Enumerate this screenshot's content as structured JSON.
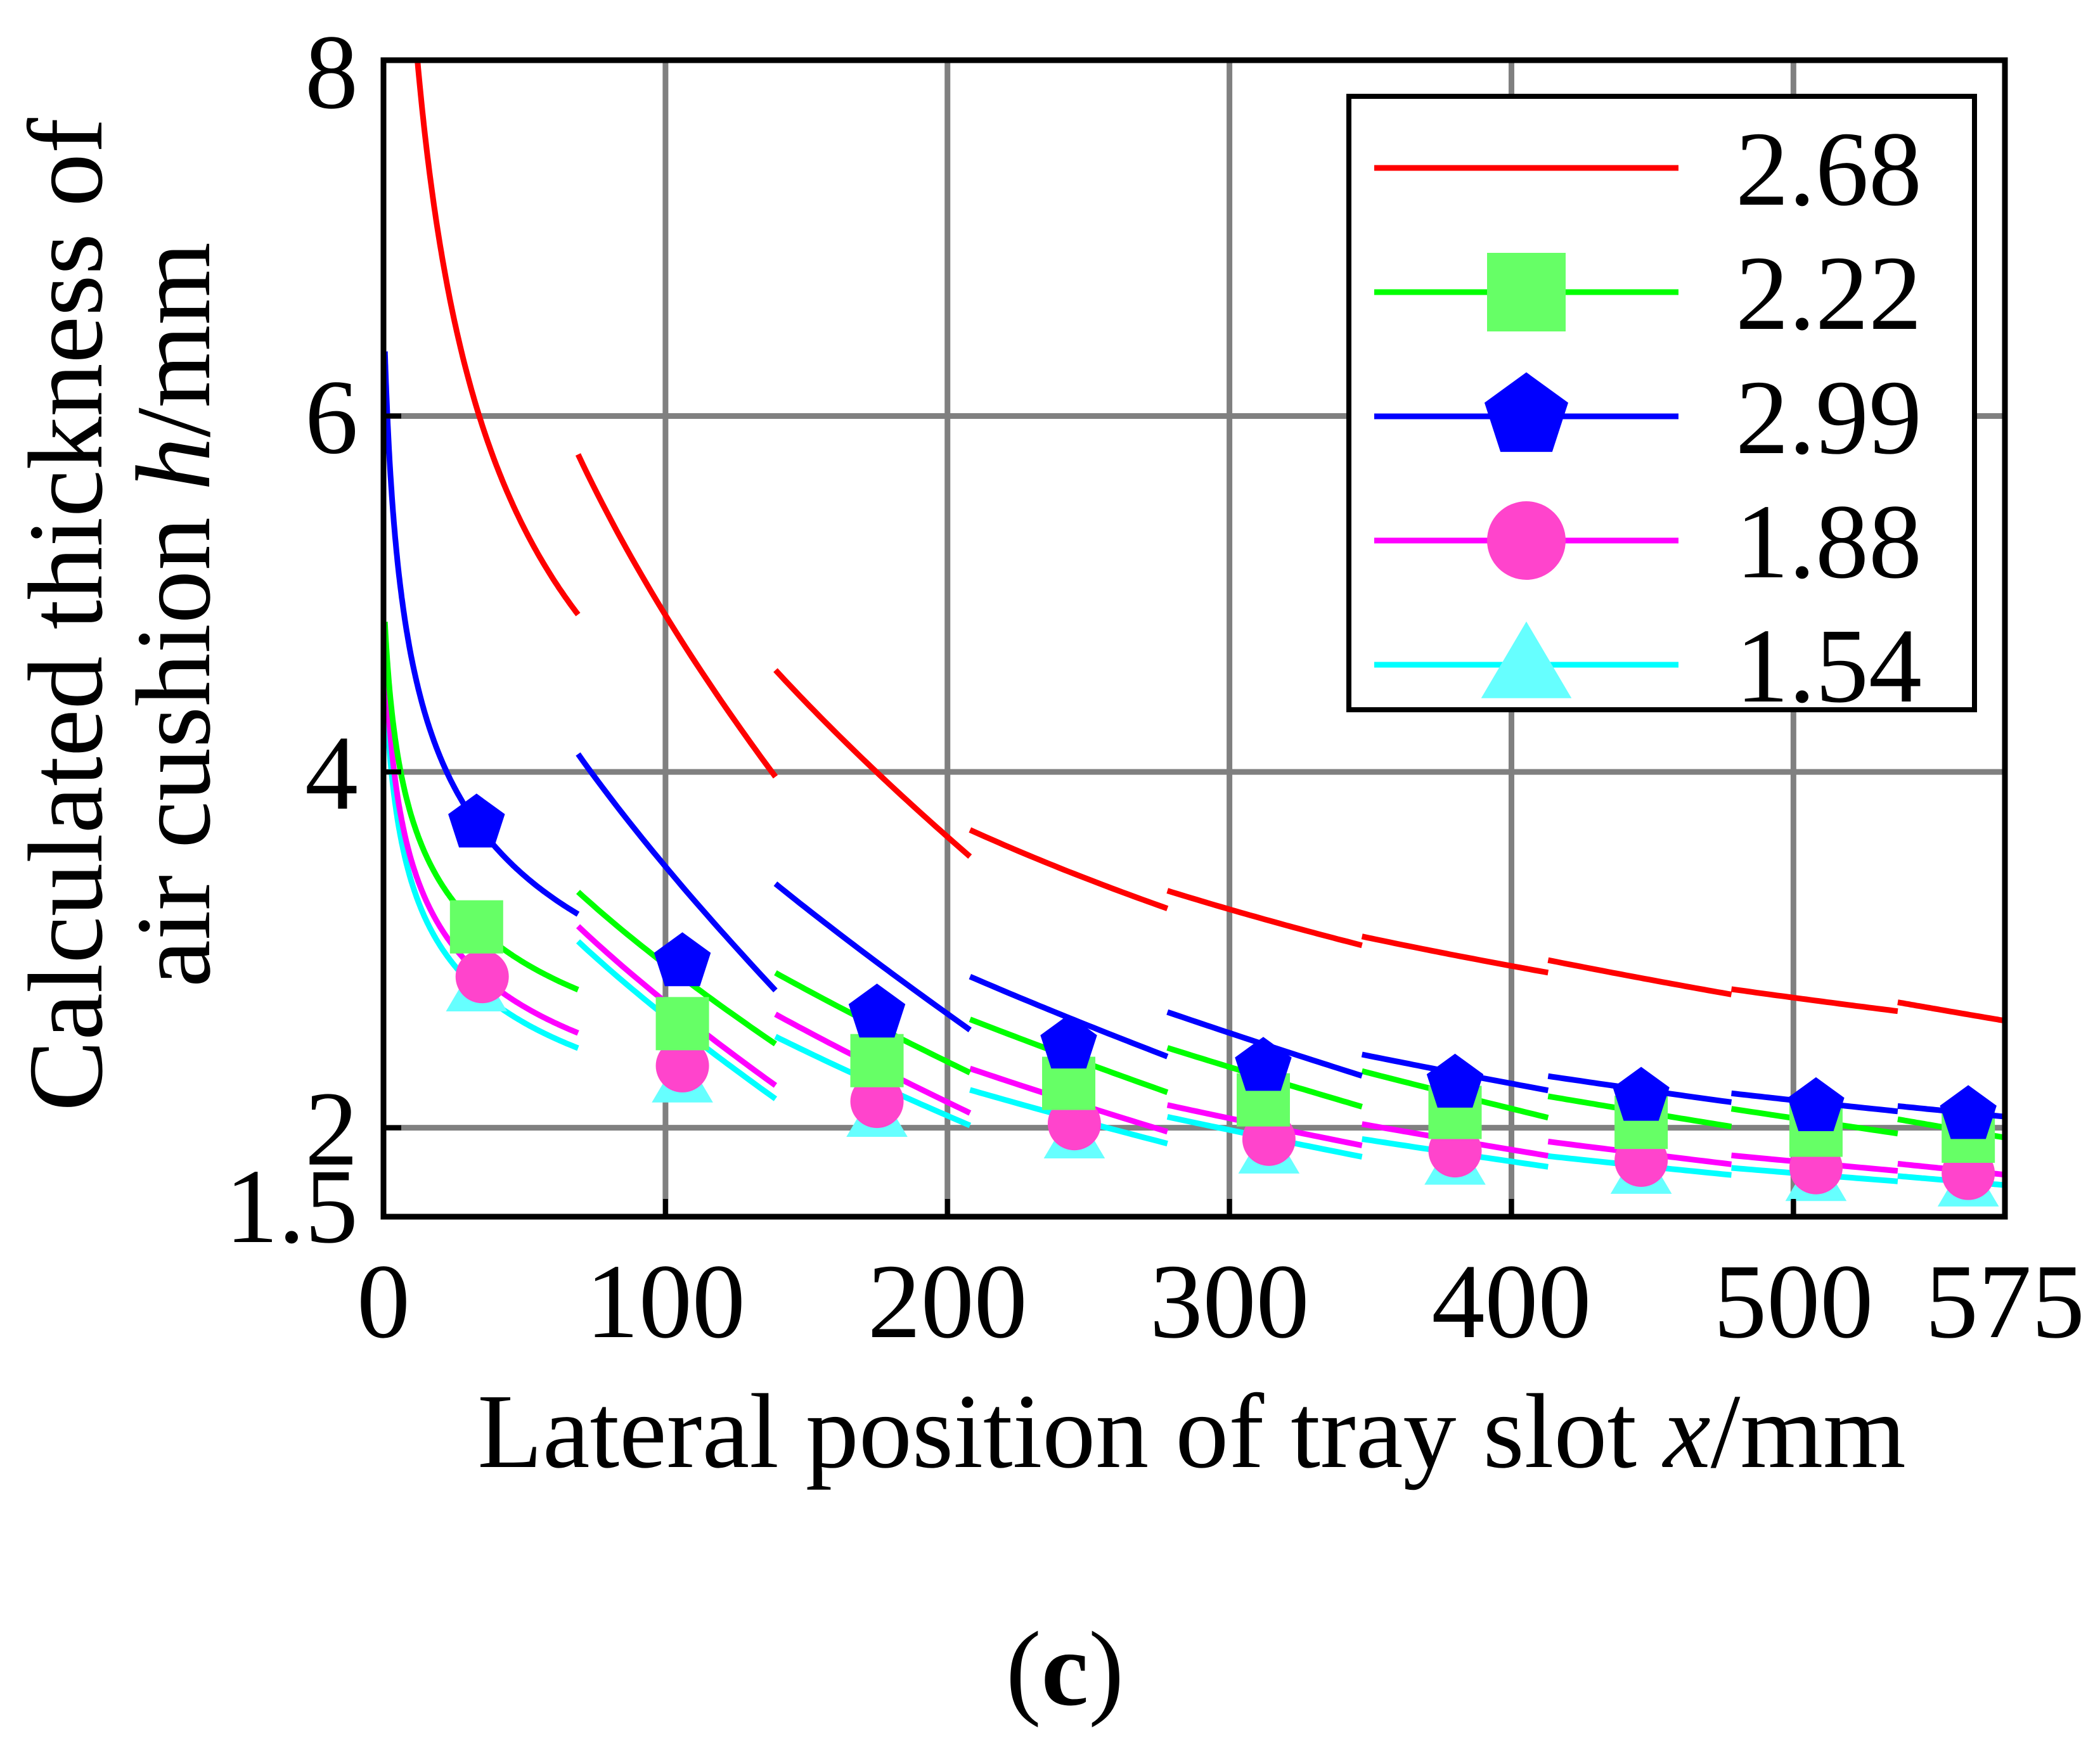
{
  "chart_data": {
    "type": "line",
    "xlabel_prefix": "Lateral position of tray slot ",
    "xlabel_var": "x",
    "xlabel_suffix": "/mm",
    "ylabel_line1": "Calculated thickness of",
    "ylabel_line2_prefix": "air cushion ",
    "ylabel_line2_var": "h",
    "ylabel_line2_suffix": "/mm",
    "caption_open": "(",
    "caption_letter": "c",
    "caption_close": ")",
    "xlim": [
      0,
      575
    ],
    "ylim": [
      1.5,
      8
    ],
    "xticks": [
      0,
      100,
      200,
      300,
      400,
      500,
      575
    ],
    "yticks": [
      1.5,
      2,
      4,
      6,
      8
    ],
    "xgrid": [
      100,
      200,
      300,
      400,
      500
    ],
    "ygrid": [
      2,
      4,
      6
    ],
    "grid": true,
    "legend_position": "top-right",
    "segment_breaks": [
      0,
      69,
      139,
      208,
      278,
      347,
      413,
      478,
      537,
      575
    ],
    "series": [
      {
        "name": "2.68",
        "color": "#ff0000",
        "marker": "none",
        "h": 4.4,
        "p": 0.3,
        "x0": 1.6,
        "discontinuities": [
          0.9,
          0.6,
          0.15,
          0.1,
          0.05,
          0.07,
          0.03,
          0.05
        ],
        "markers_x": []
      },
      {
        "name": "2.22",
        "color": "#00ff00",
        "marker": "square",
        "marker_fill": "#66ff66",
        "h": 2.62,
        "p": 0.17,
        "x0": 2.2,
        "discontinuities": [
          0.55,
          0.4,
          0.3,
          0.25,
          0.2,
          0.12,
          0.1,
          0.08
        ],
        "markers_x": [
          33,
          106,
          175,
          243,
          312,
          380,
          446,
          508,
          562
        ]
      },
      {
        "name": "2.99",
        "color": "#0000ff",
        "marker": "pentagon",
        "marker_fill": "#0000ff",
        "h": 2.98,
        "p": 0.21,
        "x0": 2.2,
        "discontinuities": [
          0.9,
          0.6,
          0.3,
          0.25,
          0.12,
          0.08,
          0.05,
          0.03
        ],
        "markers_x": [
          33,
          106,
          175,
          243,
          312,
          380,
          446,
          508,
          562
        ]
      },
      {
        "name": "1.88",
        "color": "#ff00ff",
        "marker": "circle",
        "marker_fill": "#ff44cc",
        "h": 2.38,
        "p": 0.18,
        "x0": 1.8,
        "discontinuities": [
          0.6,
          0.4,
          0.25,
          0.15,
          0.12,
          0.08,
          0.05,
          0.04
        ],
        "markers_x": [
          35,
          106,
          175,
          245,
          314,
          380,
          446,
          508,
          562
        ]
      },
      {
        "name": "1.54",
        "color": "#00ffff",
        "marker": "triangle",
        "marker_fill": "#66ffff",
        "h": 2.3,
        "p": 0.18,
        "x0": 1.8,
        "discontinuities": [
          0.6,
          0.35,
          0.2,
          0.15,
          0.1,
          0.06,
          0.04,
          0.03
        ],
        "markers_x": [
          33,
          106,
          175,
          245,
          314,
          380,
          446,
          508,
          562
        ]
      }
    ]
  }
}
